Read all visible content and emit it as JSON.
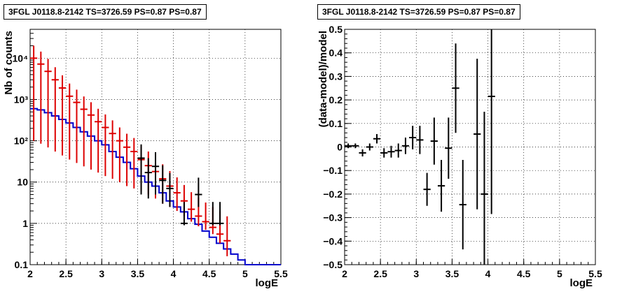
{
  "chart_data": [
    {
      "type": "line",
      "title": "3FGL J0118.8-2142 TS=3726.59 PS=0.87 PS=0.87",
      "xlabel": "logE",
      "ylabel": "Nb of counts",
      "xlim": [
        2,
        5.5
      ],
      "ylim": [
        0.1,
        50000
      ],
      "log_y": true,
      "grid": true,
      "x_ticks": [
        "2",
        "2.5",
        "3",
        "3.5",
        "4",
        "4.5",
        "5",
        "5.5"
      ],
      "y_ticks": [
        "0.1",
        "1",
        "10",
        "10²",
        "10³",
        "10⁴"
      ],
      "series": [
        {
          "color": "#0000cc",
          "style": "step",
          "bin_edges": [
            2.0,
            2.1,
            2.2,
            2.3,
            2.4,
            2.5,
            2.6,
            2.7,
            2.8,
            2.9,
            3.0,
            3.1,
            3.2,
            3.3,
            3.4,
            3.5,
            3.6,
            3.7,
            3.8,
            3.9,
            4.0,
            4.1,
            4.2,
            4.3,
            4.4,
            4.5,
            4.6,
            4.7,
            4.8,
            4.9,
            5.0,
            5.1,
            5.2,
            5.3,
            5.4,
            5.5
          ],
          "values": [
            600,
            560,
            480,
            400,
            330,
            270,
            210,
            165,
            130,
            100,
            80,
            55,
            40,
            30,
            21,
            14,
            10,
            8,
            5.5,
            3.5,
            2.5,
            1.9,
            1.3,
            0.95,
            0.65,
            0.46,
            0.33,
            0.24,
            0.18,
            0.13,
            0.1,
            0.1,
            0.1,
            0.1,
            0.1
          ]
        },
        {
          "color": "#dd0000",
          "style": "errorbar",
          "x": [
            2.05,
            2.15,
            2.25,
            2.35,
            2.45,
            2.55,
            2.65,
            2.75,
            2.85,
            2.95,
            3.05,
            3.15,
            3.25,
            3.35,
            3.45,
            3.55,
            3.65,
            3.75,
            3.85,
            3.95,
            4.05,
            4.15,
            4.25,
            4.35,
            4.45,
            4.55,
            4.65,
            4.75
          ],
          "y": [
            10000,
            7200,
            4800,
            3000,
            1900,
            1200,
            850,
            580,
            420,
            290,
            210,
            150,
            100,
            70,
            55,
            35,
            25,
            18,
            12,
            8,
            5.5,
            3.5,
            2.2,
            1.5,
            1.1,
            0.8,
            0.55,
            0.38
          ],
          "yerr_low": [
            9900,
            7115,
            4731,
            2945,
            1856,
            1165,
            821,
            556,
            400,
            273,
            196,
            138,
            90,
            62,
            48,
            29,
            20,
            14,
            9,
            5.5,
            3.5,
            2.0,
            1.1,
            0.65,
            0.4,
            0.25,
            0.22,
            0.22
          ],
          "yerr_high": [
            10100,
            7285,
            4869,
            3055,
            1944,
            1235,
            879,
            604,
            440,
            307,
            224,
            162,
            110,
            78,
            62,
            41,
            30,
            22,
            15,
            10.5,
            7.5,
            5.0,
            3.5,
            2.7,
            2.1,
            1.7,
            1.4,
            1.1
          ]
        },
        {
          "color": "#000000",
          "style": "errorbar",
          "x": [
            3.55,
            3.65,
            3.75,
            3.85,
            3.95,
            4.15,
            4.35,
            4.55,
            4.65
          ],
          "y": [
            38,
            17,
            24,
            11,
            7,
            1,
            5,
            1,
            1
          ],
          "yerr_low": [
            33,
            13,
            19,
            8,
            4.5,
            0.1,
            2.5,
            0.1,
            0.1
          ],
          "yerr_high": [
            44,
            21,
            29,
            14.5,
            9.5,
            2.3,
            7.8,
            2.3,
            2.3
          ]
        }
      ]
    },
    {
      "type": "scatter",
      "title": "3FGL J0118.8-2142 TS=3726.59 PS=0.87 PS=0.87",
      "xlabel": "logE",
      "ylabel": "(data-model)/model",
      "xlim": [
        2,
        5.5
      ],
      "ylim": [
        -0.5,
        0.5
      ],
      "grid": true,
      "x_ticks": [
        "2",
        "2.5",
        "3",
        "3.5",
        "4",
        "4.5",
        "5",
        "5.5"
      ],
      "y_ticks": [
        "−0.5",
        "−0.4",
        "−0.3",
        "−0.2",
        "−0.1",
        "0",
        "0.1",
        "0.2",
        "0.3",
        "0.4",
        "0.5"
      ],
      "y_tick_values": [
        -0.5,
        -0.4,
        -0.3,
        -0.2,
        -0.1,
        0,
        0.1,
        0.2,
        0.3,
        0.4,
        0.5
      ],
      "series": [
        {
          "color": "#000000",
          "style": "errorbar",
          "x": [
            2.05,
            2.15,
            2.25,
            2.35,
            2.45,
            2.55,
            2.65,
            2.75,
            2.85,
            2.95,
            3.05,
            3.15,
            3.25,
            3.35,
            3.45,
            3.55,
            3.65,
            3.85,
            3.95,
            4.05
          ],
          "y": [
            0.005,
            0.005,
            -0.025,
            0.0,
            0.035,
            -0.025,
            -0.02,
            -0.015,
            0.005,
            0.04,
            0.03,
            -0.18,
            0.025,
            -0.165,
            -0.005,
            0.25,
            -0.245,
            0.055,
            -0.2,
            0.215
          ],
          "yerr": [
            0.01,
            0.01,
            0.015,
            0.015,
            0.02,
            0.02,
            0.025,
            0.03,
            0.035,
            0.05,
            0.06,
            0.07,
            0.1,
            0.11,
            0.13,
            0.19,
            0.19,
            0.32,
            0.35,
            0.5
          ]
        }
      ]
    }
  ]
}
